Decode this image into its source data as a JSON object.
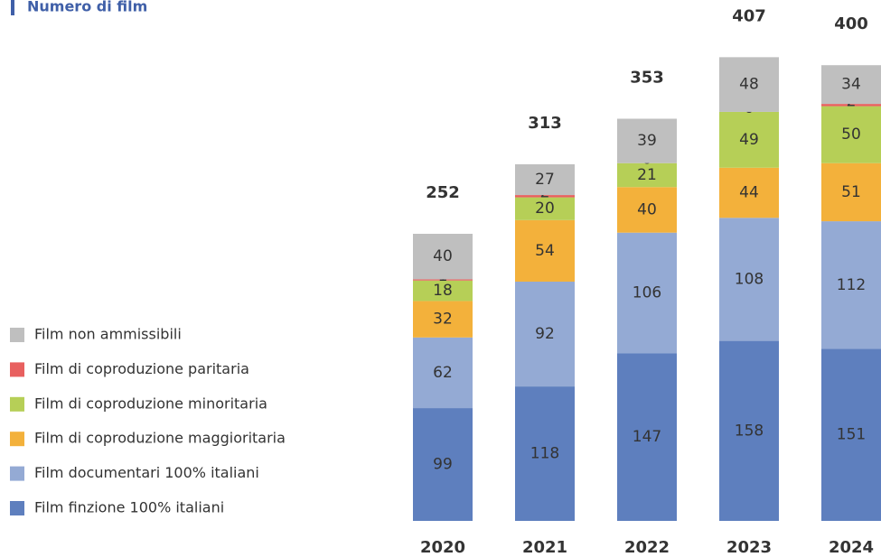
{
  "chart_data": {
    "type": "stacked-bar",
    "title": "Numero di film",
    "categories": [
      "2020",
      "2021",
      "2022",
      "2023",
      "2024"
    ],
    "series": [
      {
        "name": "Film finzione 100% italiani",
        "color": "#5e7fbe",
        "values": [
          99,
          118,
          147,
          158,
          151
        ]
      },
      {
        "name": "Film documentari 100% italiani",
        "color": "#94aad4",
        "values": [
          62,
          92,
          106,
          108,
          112
        ]
      },
      {
        "name": "Film di coproduzione maggioritaria",
        "color": "#f3b13b",
        "values": [
          32,
          54,
          40,
          44,
          51
        ]
      },
      {
        "name": "Film di coproduzione minoritaria",
        "color": "#b6cf57",
        "values": [
          18,
          20,
          21,
          49,
          50
        ]
      },
      {
        "name": "Film di coproduzione paritaria",
        "color": "#e8605f",
        "values": [
          1,
          2,
          0,
          0,
          2
        ]
      },
      {
        "name": "Film non ammissibili",
        "color": "#bfbfbf",
        "values": [
          40,
          27,
          39,
          48,
          34
        ]
      }
    ],
    "totals": [
      252,
      313,
      353,
      407,
      400
    ],
    "legend": "left"
  }
}
